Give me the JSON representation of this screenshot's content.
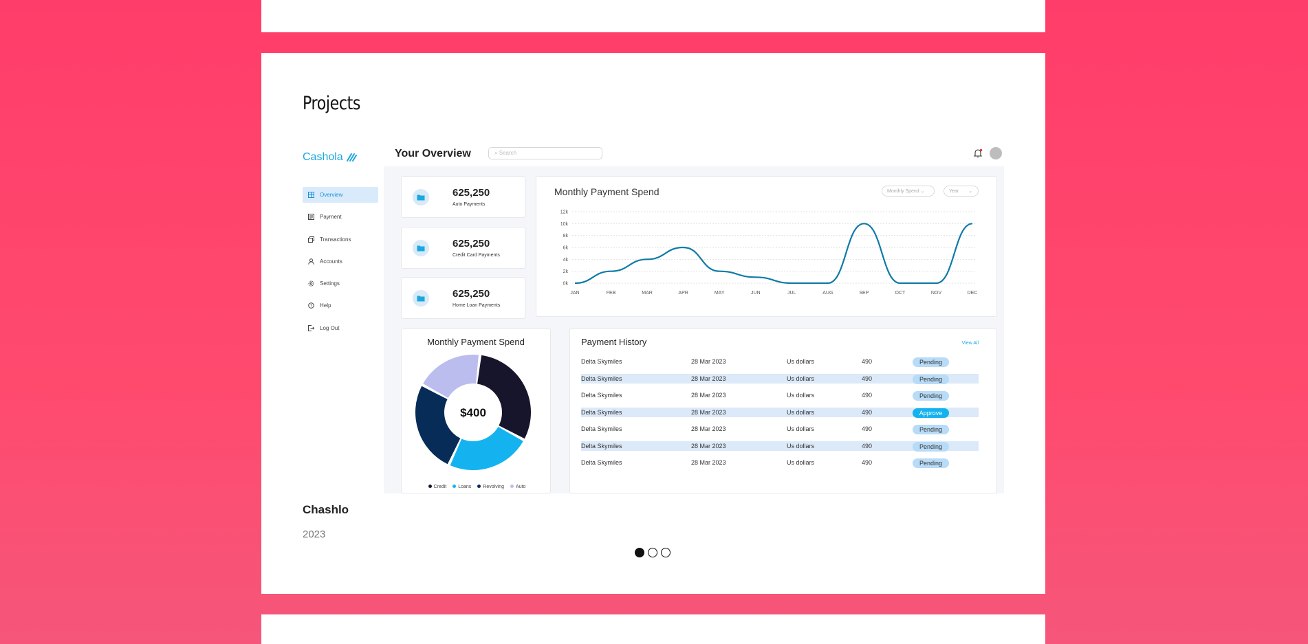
{
  "section": {
    "title": "Projects"
  },
  "project": {
    "name": "Chashlo",
    "year": "2023",
    "slides": [
      {
        "label": "slide-1",
        "active": true
      },
      {
        "label": "slide-2",
        "active": false
      },
      {
        "label": "slide-3",
        "active": false
      }
    ]
  },
  "app": {
    "logo": "Cashola",
    "page_title": "Your Overview",
    "search_placeholder": "Search",
    "nav": [
      {
        "label": "Overview",
        "icon": "overview-icon",
        "active": true
      },
      {
        "label": "Payment",
        "icon": "payment-icon",
        "active": false
      },
      {
        "label": "Transactions",
        "icon": "transactions-icon",
        "active": false
      },
      {
        "label": "Accounts",
        "icon": "accounts-icon",
        "active": false
      },
      {
        "label": "Settings",
        "icon": "settings-icon",
        "active": false
      },
      {
        "label": "Help",
        "icon": "help-icon",
        "active": false
      },
      {
        "label": "Log Out",
        "icon": "logout-icon",
        "active": false
      }
    ],
    "stats": [
      {
        "value": "625,250",
        "label": "Auto Payments"
      },
      {
        "value": "625,250",
        "label": "Credit Card Payments"
      },
      {
        "value": "625,250",
        "label": "Home Loan Payments"
      }
    ],
    "line_chart": {
      "title": "Monthly Payment Spend",
      "filter_1": "Monthly Spend",
      "filter_2": "Year"
    },
    "donut": {
      "title": "Monthly Payment Spend",
      "center_label": "$400"
    },
    "history": {
      "title": "Payment History",
      "view_all": "View All",
      "rows": [
        {
          "name": "Delta Skymiles",
          "date": "28 Mar 2023",
          "currency": "Us dollars",
          "amount": "490",
          "status": "Pending"
        },
        {
          "name": "Delta Skymiles",
          "date": "28 Mar 2023",
          "currency": "Us dollars",
          "amount": "490",
          "status": "Pending"
        },
        {
          "name": "Delta Skymiles",
          "date": "28 Mar 2023",
          "currency": "Us dollars",
          "amount": "490",
          "status": "Pending"
        },
        {
          "name": "Delta Skymiles",
          "date": "28 Mar 2023",
          "currency": "Us dollars",
          "amount": "490",
          "status": "Approve"
        },
        {
          "name": "Delta Skymiles",
          "date": "28 Mar 2023",
          "currency": "Us dollars",
          "amount": "490",
          "status": "Pending"
        },
        {
          "name": "Delta Skymiles",
          "date": "28 Mar 2023",
          "currency": "Us dollars",
          "amount": "490",
          "status": "Pending"
        },
        {
          "name": "Delta Skymiles",
          "date": "28 Mar 2023",
          "currency": "Us dollars",
          "amount": "490",
          "status": "Pending"
        }
      ]
    }
  },
  "chart_data": [
    {
      "type": "line",
      "title": "Monthly Payment Spend",
      "categories": [
        "JAN",
        "FEB",
        "MAR",
        "APR",
        "MAY",
        "JUN",
        "JUL",
        "AUG",
        "SEP",
        "OCT",
        "NOV",
        "DEC"
      ],
      "values": [
        0,
        2000,
        4000,
        6000,
        2000,
        1000,
        0,
        0,
        10000,
        0,
        0,
        10000
      ],
      "ytick_labels": [
        "0k",
        "2k",
        "4k",
        "6k",
        "8k",
        "10k",
        "12k"
      ],
      "ylim": [
        0,
        12000
      ],
      "color": "#0e7aa8"
    },
    {
      "type": "pie",
      "title": "Monthly Payment Spend",
      "labels": [
        "Credit",
        "Loans",
        "Revolving",
        "Auto"
      ],
      "values": [
        31,
        24,
        26,
        19
      ],
      "colors": [
        "#17152b",
        "#14b3ef",
        "#062c57",
        "#bbbdee"
      ]
    }
  ]
}
